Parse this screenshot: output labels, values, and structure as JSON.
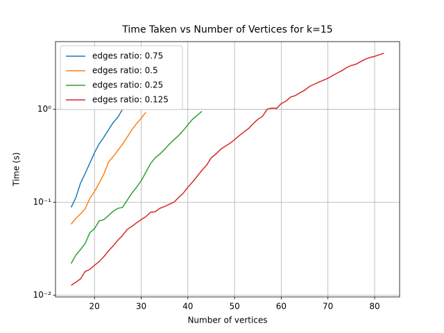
{
  "chart_data": {
    "type": "line",
    "title": "Time Taken vs Number of Vertices for k=15",
    "x_label": "Number of vertices",
    "y_label": "Time (s)",
    "xlim": [
      11.65,
      85.35
    ],
    "xticks": [
      20,
      30,
      40,
      50,
      60,
      70,
      80
    ],
    "ylim": [
      0.0096,
      5.33
    ],
    "y_scale": "log",
    "yticks": [
      {
        "value": 0.01,
        "label": "10⁻²"
      },
      {
        "value": 0.1,
        "label": "10⁻¹"
      },
      {
        "value": 1,
        "label": "10⁰"
      }
    ],
    "grid": true,
    "legend_loc": "upper left",
    "series": [
      {
        "name": "edges ratio: 0.75",
        "color": "#1f77b4",
        "x": [
          15,
          16,
          17,
          18,
          19,
          20,
          21,
          22,
          23,
          24,
          25,
          26
        ],
        "values": [
          0.088,
          0.112,
          0.16,
          0.204,
          0.263,
          0.34,
          0.425,
          0.5,
          0.6,
          0.72,
          0.82,
          1.0
        ]
      },
      {
        "name": "edges ratio: 0.5",
        "color": "#ff7f0e",
        "x": [
          15,
          16,
          17,
          18,
          19,
          20,
          21,
          22,
          23,
          24,
          25,
          26,
          27,
          28,
          29,
          30,
          31
        ],
        "values": [
          0.058,
          0.067,
          0.075,
          0.085,
          0.11,
          0.13,
          0.16,
          0.2,
          0.27,
          0.31,
          0.36,
          0.42,
          0.5,
          0.6,
          0.7,
          0.8,
          0.93
        ]
      },
      {
        "name": "edges ratio: 0.25",
        "color": "#2ca02c",
        "x": [
          15,
          16,
          17,
          18,
          19,
          20,
          21,
          22,
          23,
          24,
          25,
          26,
          27,
          28,
          29,
          30,
          31,
          32,
          33,
          34,
          35,
          36,
          37,
          38,
          39,
          40,
          41,
          42,
          43
        ],
        "values": [
          0.022,
          0.027,
          0.031,
          0.036,
          0.047,
          0.052,
          0.063,
          0.065,
          0.072,
          0.08,
          0.086,
          0.088,
          0.105,
          0.125,
          0.145,
          0.17,
          0.21,
          0.26,
          0.3,
          0.33,
          0.37,
          0.42,
          0.47,
          0.52,
          0.59,
          0.68,
          0.78,
          0.86,
          0.95
        ]
      },
      {
        "name": "edges ratio: 0.125",
        "color": "#d62728",
        "x": [
          15,
          16,
          17,
          18,
          19,
          20,
          21,
          22,
          23,
          24,
          25,
          26,
          27,
          28,
          29,
          30,
          31,
          32,
          33,
          34,
          35,
          36,
          37,
          38,
          39,
          40,
          41,
          42,
          43,
          44,
          45,
          46,
          47,
          48,
          49,
          50,
          51,
          52,
          53,
          54,
          55,
          56,
          57,
          58,
          59,
          60,
          61,
          62,
          63,
          64,
          65,
          66,
          67,
          68,
          69,
          70,
          71,
          72,
          73,
          74,
          75,
          76,
          77,
          78,
          79,
          80,
          81,
          82
        ],
        "values": [
          0.0128,
          0.0138,
          0.015,
          0.018,
          0.019,
          0.021,
          0.023,
          0.026,
          0.03,
          0.034,
          0.039,
          0.044,
          0.051,
          0.055,
          0.06,
          0.065,
          0.07,
          0.078,
          0.079,
          0.086,
          0.09,
          0.095,
          0.1,
          0.112,
          0.125,
          0.145,
          0.165,
          0.19,
          0.22,
          0.25,
          0.3,
          0.33,
          0.37,
          0.4,
          0.43,
          0.47,
          0.52,
          0.57,
          0.62,
          0.7,
          0.78,
          0.84,
          1.0,
          1.03,
          1.02,
          1.15,
          1.22,
          1.35,
          1.4,
          1.5,
          1.6,
          1.75,
          1.85,
          1.95,
          2.05,
          2.15,
          2.3,
          2.45,
          2.6,
          2.8,
          2.95,
          3.05,
          3.25,
          3.45,
          3.6,
          3.7,
          3.85,
          4.0
        ]
      }
    ]
  }
}
